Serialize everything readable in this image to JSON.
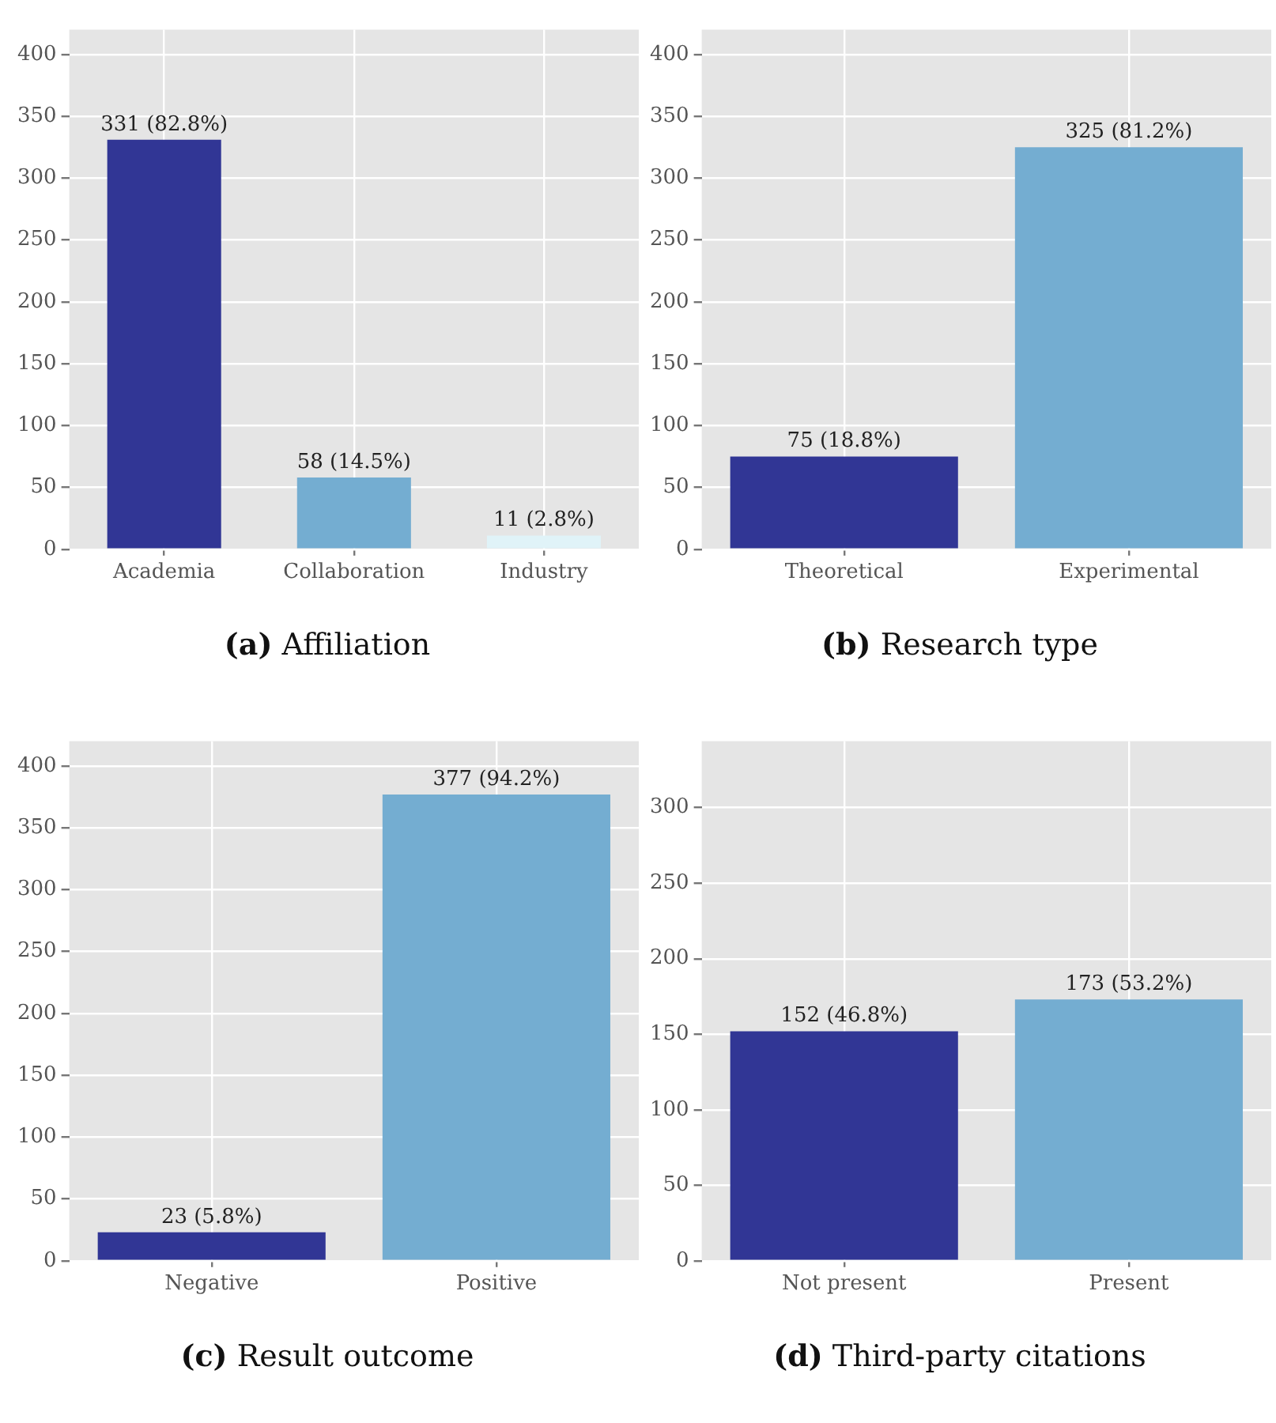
{
  "chart_data": [
    {
      "type": "bar",
      "title": "(a) Affiliation",
      "categories": [
        "Academia",
        "Collaboration",
        "Industry"
      ],
      "values": [
        331,
        58,
        11
      ],
      "colors": [
        "#313695",
        "#74add1",
        "#e0f3f8"
      ],
      "value_labels": [
        "331 (82.8%)",
        "58 (14.5%)",
        "11 (2.8%)"
      ],
      "ylim": [
        0,
        420
      ],
      "yticks": [
        0,
        50,
        100,
        150,
        200,
        250,
        300,
        350,
        400
      ],
      "grid": true,
      "legend": false
    },
    {
      "type": "bar",
      "title": "(b) Research type",
      "categories": [
        "Theoretical",
        "Experimental"
      ],
      "values": [
        75,
        325
      ],
      "colors": [
        "#313695",
        "#74add1"
      ],
      "value_labels": [
        "75 (18.8%)",
        "325 (81.2%)"
      ],
      "ylim": [
        0,
        420
      ],
      "yticks": [
        0,
        50,
        100,
        150,
        200,
        250,
        300,
        350,
        400
      ],
      "grid": true,
      "legend": false
    },
    {
      "type": "bar",
      "title": "(c) Result outcome",
      "categories": [
        "Negative",
        "Positive"
      ],
      "values": [
        23,
        377
      ],
      "colors": [
        "#313695",
        "#74add1"
      ],
      "value_labels": [
        "23 (5.8%)",
        "377 (94.2%)"
      ],
      "ylim": [
        0,
        420
      ],
      "yticks": [
        0,
        50,
        100,
        150,
        200,
        250,
        300,
        350,
        400
      ],
      "grid": true,
      "legend": false
    },
    {
      "type": "bar",
      "title": "(d) Third-party citations",
      "categories": [
        "Not present",
        "Present"
      ],
      "values": [
        152,
        173
      ],
      "colors": [
        "#313695",
        "#74add1"
      ],
      "value_labels": [
        "152 (46.8%)",
        "173 (53.2%)"
      ],
      "ylim": [
        0,
        344
      ],
      "yticks": [
        0,
        50,
        100,
        150,
        200,
        250,
        300
      ],
      "grid": true,
      "legend": false
    }
  ]
}
